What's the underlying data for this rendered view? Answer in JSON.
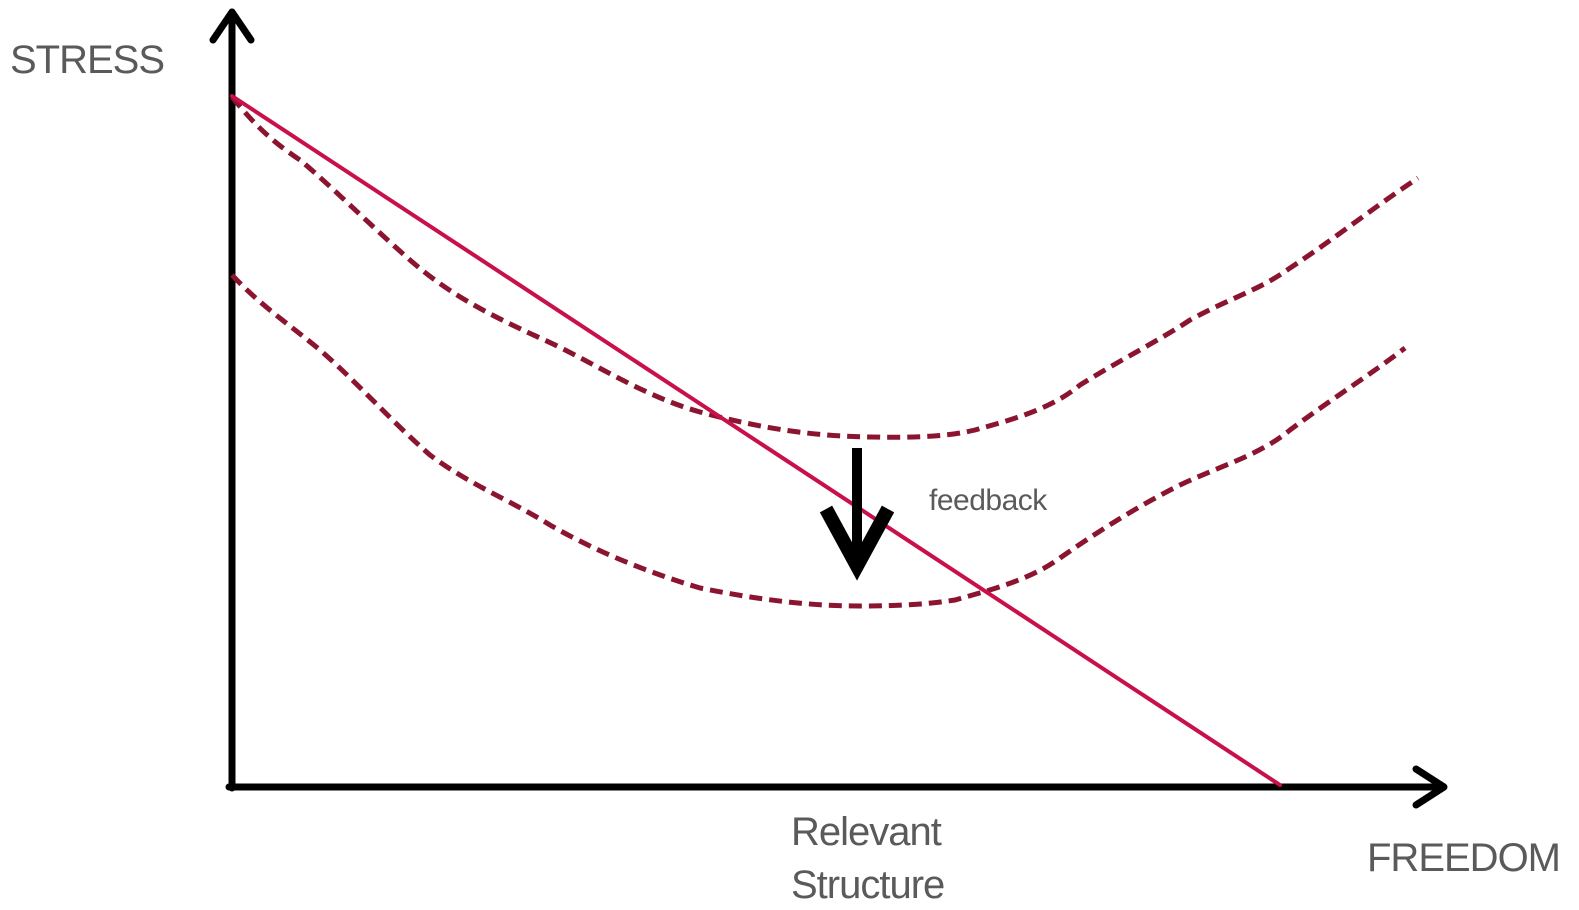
{
  "axes": {
    "y_label": "STRESS",
    "x_label": "FREEDOM"
  },
  "annotations": {
    "feedback": "feedback",
    "relevant_structure_line1": "Relevant",
    "relevant_structure_line2": "Structure"
  },
  "colors": {
    "axis": "#000000",
    "structure_line": "#c8104a",
    "stress_curves": "#8b1530",
    "feedback_arrow": "#000000",
    "text": "#5a5a5a"
  },
  "icons": {
    "y_axis_arrow": "arrow-up",
    "x_axis_arrow": "arrow-right",
    "feedback_arrow": "arrow-down"
  }
}
